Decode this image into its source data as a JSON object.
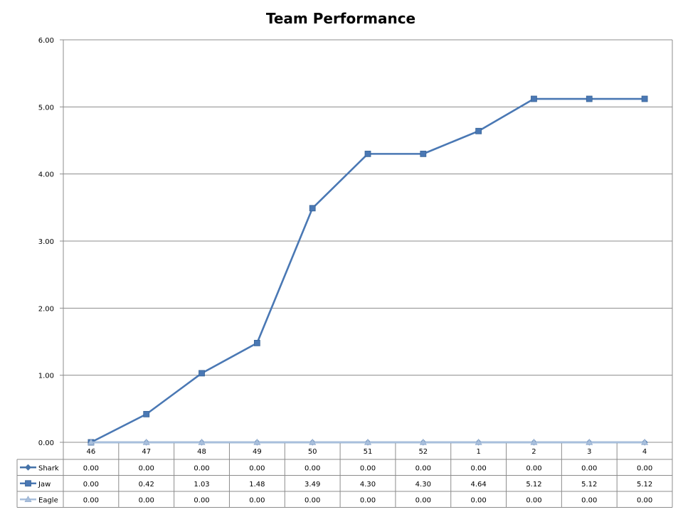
{
  "chart_data": {
    "type": "line",
    "title": "Team Performance",
    "xlabel": "",
    "ylabel": "",
    "categories": [
      "46",
      "47",
      "48",
      "49",
      "50",
      "51",
      "52",
      "1",
      "2",
      "3",
      "4"
    ],
    "ylim": [
      0,
      6
    ],
    "yticks": [
      "0.00",
      "1.00",
      "2.00",
      "3.00",
      "4.00",
      "5.00",
      "6.00"
    ],
    "grid": true,
    "legend": "data-table-left",
    "series": [
      {
        "name": "Shark",
        "marker": "diamond",
        "color": "#4472a8",
        "values": [
          0,
          0,
          0,
          0,
          0,
          0,
          0,
          0,
          0,
          0,
          0
        ],
        "labels": [
          "0.00",
          "0.00",
          "0.00",
          "0.00",
          "0.00",
          "0.00",
          "0.00",
          "0.00",
          "0.00",
          "0.00",
          "0.00"
        ]
      },
      {
        "name": "Jaw",
        "marker": "square",
        "color": "#4a78b4",
        "values": [
          0,
          0.42,
          1.03,
          1.48,
          3.49,
          4.3,
          4.3,
          4.64,
          5.12,
          5.12,
          5.12
        ],
        "labels": [
          "0.00",
          "0.42",
          "1.03",
          "1.48",
          "3.49",
          "4.30",
          "4.30",
          "4.64",
          "5.12",
          "5.12",
          "5.12"
        ]
      },
      {
        "name": "Eagle",
        "marker": "triangle",
        "color": "#a8bfdc",
        "values": [
          0,
          0,
          0,
          0,
          0,
          0,
          0,
          0,
          0,
          0,
          0
        ],
        "labels": [
          "0.00",
          "0.00",
          "0.00",
          "0.00",
          "0.00",
          "0.00",
          "0.00",
          "0.00",
          "0.00",
          "0.00",
          "0.00"
        ]
      }
    ]
  }
}
